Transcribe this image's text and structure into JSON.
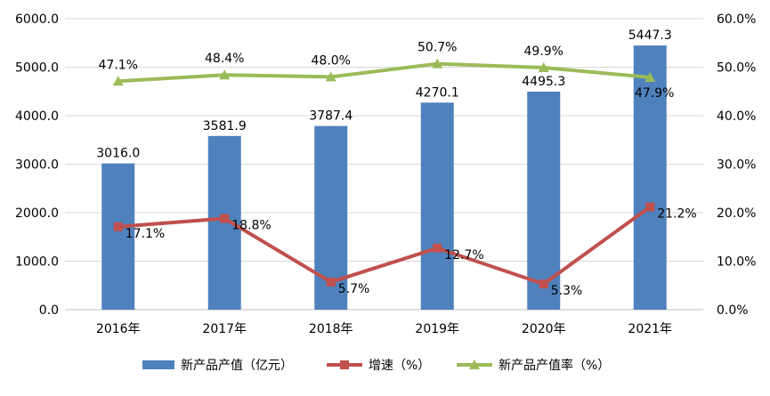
{
  "chart_data": {
    "type": "bar+line",
    "categories": [
      "2016年",
      "2017年",
      "2018年",
      "2019年",
      "2020年",
      "2021年"
    ],
    "series": [
      {
        "name": "新产品产值（亿元）",
        "kind": "bar",
        "axis": "left",
        "color": "#4F81BD",
        "values": [
          3016.0,
          3581.9,
          3787.4,
          4270.1,
          4495.3,
          5447.3
        ],
        "labels": [
          "3016.0",
          "3581.9",
          "3787.4",
          "4270.1",
          "4495.3",
          "5447.3"
        ]
      },
      {
        "name": "增速（%）",
        "kind": "line",
        "marker": "square",
        "axis": "right",
        "color": "#C0504D",
        "values": [
          17.1,
          18.8,
          5.7,
          12.7,
          5.3,
          21.2
        ],
        "labels": [
          "17.1%",
          "18.8%",
          "5.7%",
          "12.7%",
          "5.3%",
          "21.2%"
        ]
      },
      {
        "name": "新产品产值率（%）",
        "kind": "line",
        "marker": "triangle",
        "axis": "right",
        "color": "#9BBB59",
        "values": [
          47.1,
          48.4,
          48.0,
          50.7,
          49.9,
          47.9
        ],
        "labels": [
          "47.1%",
          "48.4%",
          "48.0%",
          "50.7%",
          "49.9%",
          "47.9%"
        ]
      }
    ],
    "y_left": {
      "range": [
        0,
        6000
      ],
      "ticks": [
        0,
        1000,
        2000,
        3000,
        4000,
        5000,
        6000
      ],
      "tick_labels": [
        "0.0",
        "1000.0",
        "2000.0",
        "3000.0",
        "4000.0",
        "5000.0",
        "6000.0"
      ]
    },
    "y_right": {
      "range": [
        0,
        60
      ],
      "ticks": [
        0,
        10,
        20,
        30,
        40,
        50,
        60
      ],
      "tick_labels": [
        "0.0%",
        "10.0%",
        "20.0%",
        "30.0%",
        "40.0%",
        "50.0%",
        "60.0%"
      ]
    },
    "grid": true,
    "legend_position": "bottom"
  }
}
